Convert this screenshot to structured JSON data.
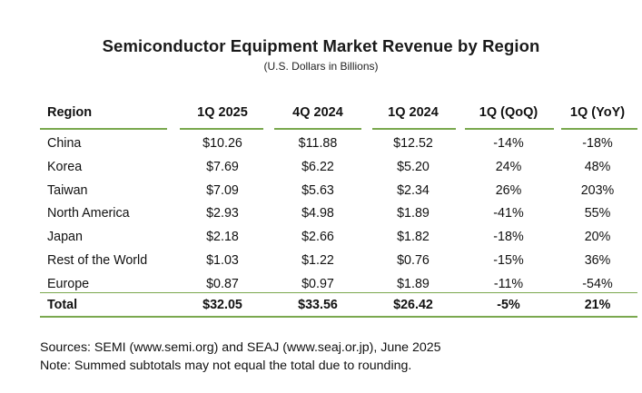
{
  "title": "Semiconductor Equipment Market Revenue by Region",
  "subtitle": "(U.S. Dollars in Billions)",
  "colors": {
    "rule": "#7aa84e",
    "text": "#111111"
  },
  "table": {
    "headers": [
      "Region",
      "1Q 2025",
      "4Q 2024",
      "1Q 2024",
      "1Q (QoQ)",
      "1Q (YoY)"
    ],
    "rows": [
      [
        "China",
        "$10.26",
        "$11.88",
        "$12.52",
        "-14%",
        "-18%"
      ],
      [
        "Korea",
        "$7.69",
        "$6.22",
        "$5.20",
        "24%",
        "48%"
      ],
      [
        "Taiwan",
        "$7.09",
        "$5.63",
        "$2.34",
        "26%",
        "203%"
      ],
      [
        "North America",
        "$2.93",
        "$4.98",
        "$1.89",
        "-41%",
        "55%"
      ],
      [
        "Japan",
        "$2.18",
        "$2.66",
        "$1.82",
        "-18%",
        "20%"
      ],
      [
        "Rest of the World",
        "$1.03",
        "$1.22",
        "$0.76",
        "-15%",
        "36%"
      ],
      [
        "Europe",
        "$0.87",
        "$0.97",
        "$1.89",
        "-11%",
        "-54%"
      ]
    ],
    "total": [
      "Total",
      "$32.05",
      "$33.56",
      "$26.42",
      "-5%",
      "21%"
    ]
  },
  "footer": {
    "sources": "Sources: SEMI (www.semi.org) and SEAJ (www.seaj.or.jp), June 2025",
    "note": "Note: Summed subtotals may not equal the total due to rounding."
  }
}
